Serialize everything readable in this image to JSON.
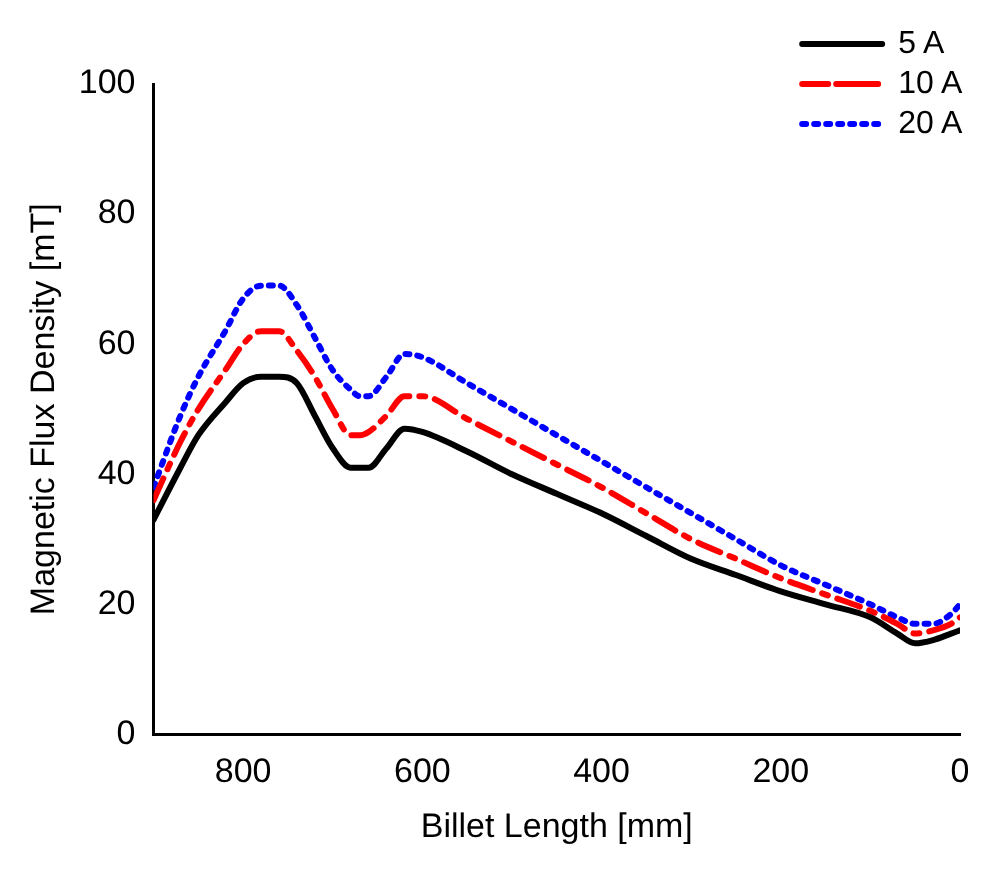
{
  "chart_data": {
    "type": "line",
    "xlabel": "Billet Length [mm]",
    "ylabel": "Magnetic Flux Density [mT]",
    "xlim": [
      900,
      0
    ],
    "ylim": [
      0,
      100
    ],
    "xticks": [
      800,
      600,
      400,
      200,
      0
    ],
    "yticks": [
      0,
      20,
      40,
      60,
      80,
      100
    ],
    "grid": false,
    "legend": "top right",
    "marker": "none",
    "series": [
      {
        "name": "5 A",
        "color": "#000000",
        "line_style": "solid",
        "x": [
          900,
          870,
          850,
          820,
          800,
          780,
          760,
          740,
          720,
          700,
          680,
          670,
          660,
          640,
          620,
          600,
          550,
          500,
          450,
          400,
          350,
          300,
          250,
          200,
          150,
          100,
          70,
          50,
          30,
          10,
          0
        ],
        "values": [
          33,
          41,
          46,
          51,
          54,
          55,
          55,
          54,
          49,
          44,
          41,
          41,
          41,
          44,
          47,
          46.5,
          43.5,
          40,
          37,
          34,
          30.5,
          27,
          24.5,
          22,
          20,
          18,
          15.5,
          14,
          14.5,
          15.5,
          16
        ]
      },
      {
        "name": "10 A",
        "color": "#ff0000",
        "line_style": "dashdot",
        "x": [
          900,
          870,
          850,
          820,
          800,
          780,
          760,
          740,
          720,
          700,
          680,
          670,
          660,
          640,
          620,
          600,
          550,
          500,
          450,
          400,
          350,
          300,
          250,
          200,
          150,
          100,
          70,
          50,
          30,
          10,
          0
        ],
        "values": [
          36,
          45,
          50,
          56,
          60,
          62,
          62,
          59,
          55,
          50,
          46,
          46,
          46.5,
          49,
          52,
          52,
          48.5,
          45,
          41.5,
          38,
          34,
          30,
          27,
          24,
          21.5,
          19,
          17,
          15.5,
          16,
          17,
          18
        ]
      },
      {
        "name": "20 A",
        "color": "#0000ff",
        "line_style": "dotted",
        "x": [
          900,
          870,
          850,
          820,
          800,
          780,
          760,
          740,
          720,
          700,
          680,
          670,
          660,
          640,
          620,
          600,
          550,
          500,
          450,
          400,
          350,
          300,
          250,
          200,
          150,
          100,
          70,
          50,
          30,
          10,
          0
        ],
        "values": [
          38,
          49,
          55,
          62,
          67,
          69,
          69,
          66,
          61,
          56,
          53,
          52,
          52,
          55,
          58.5,
          58,
          54,
          50,
          46,
          42,
          38,
          34,
          30,
          26,
          23,
          20,
          18,
          17,
          17,
          18.5,
          20
        ]
      }
    ]
  }
}
